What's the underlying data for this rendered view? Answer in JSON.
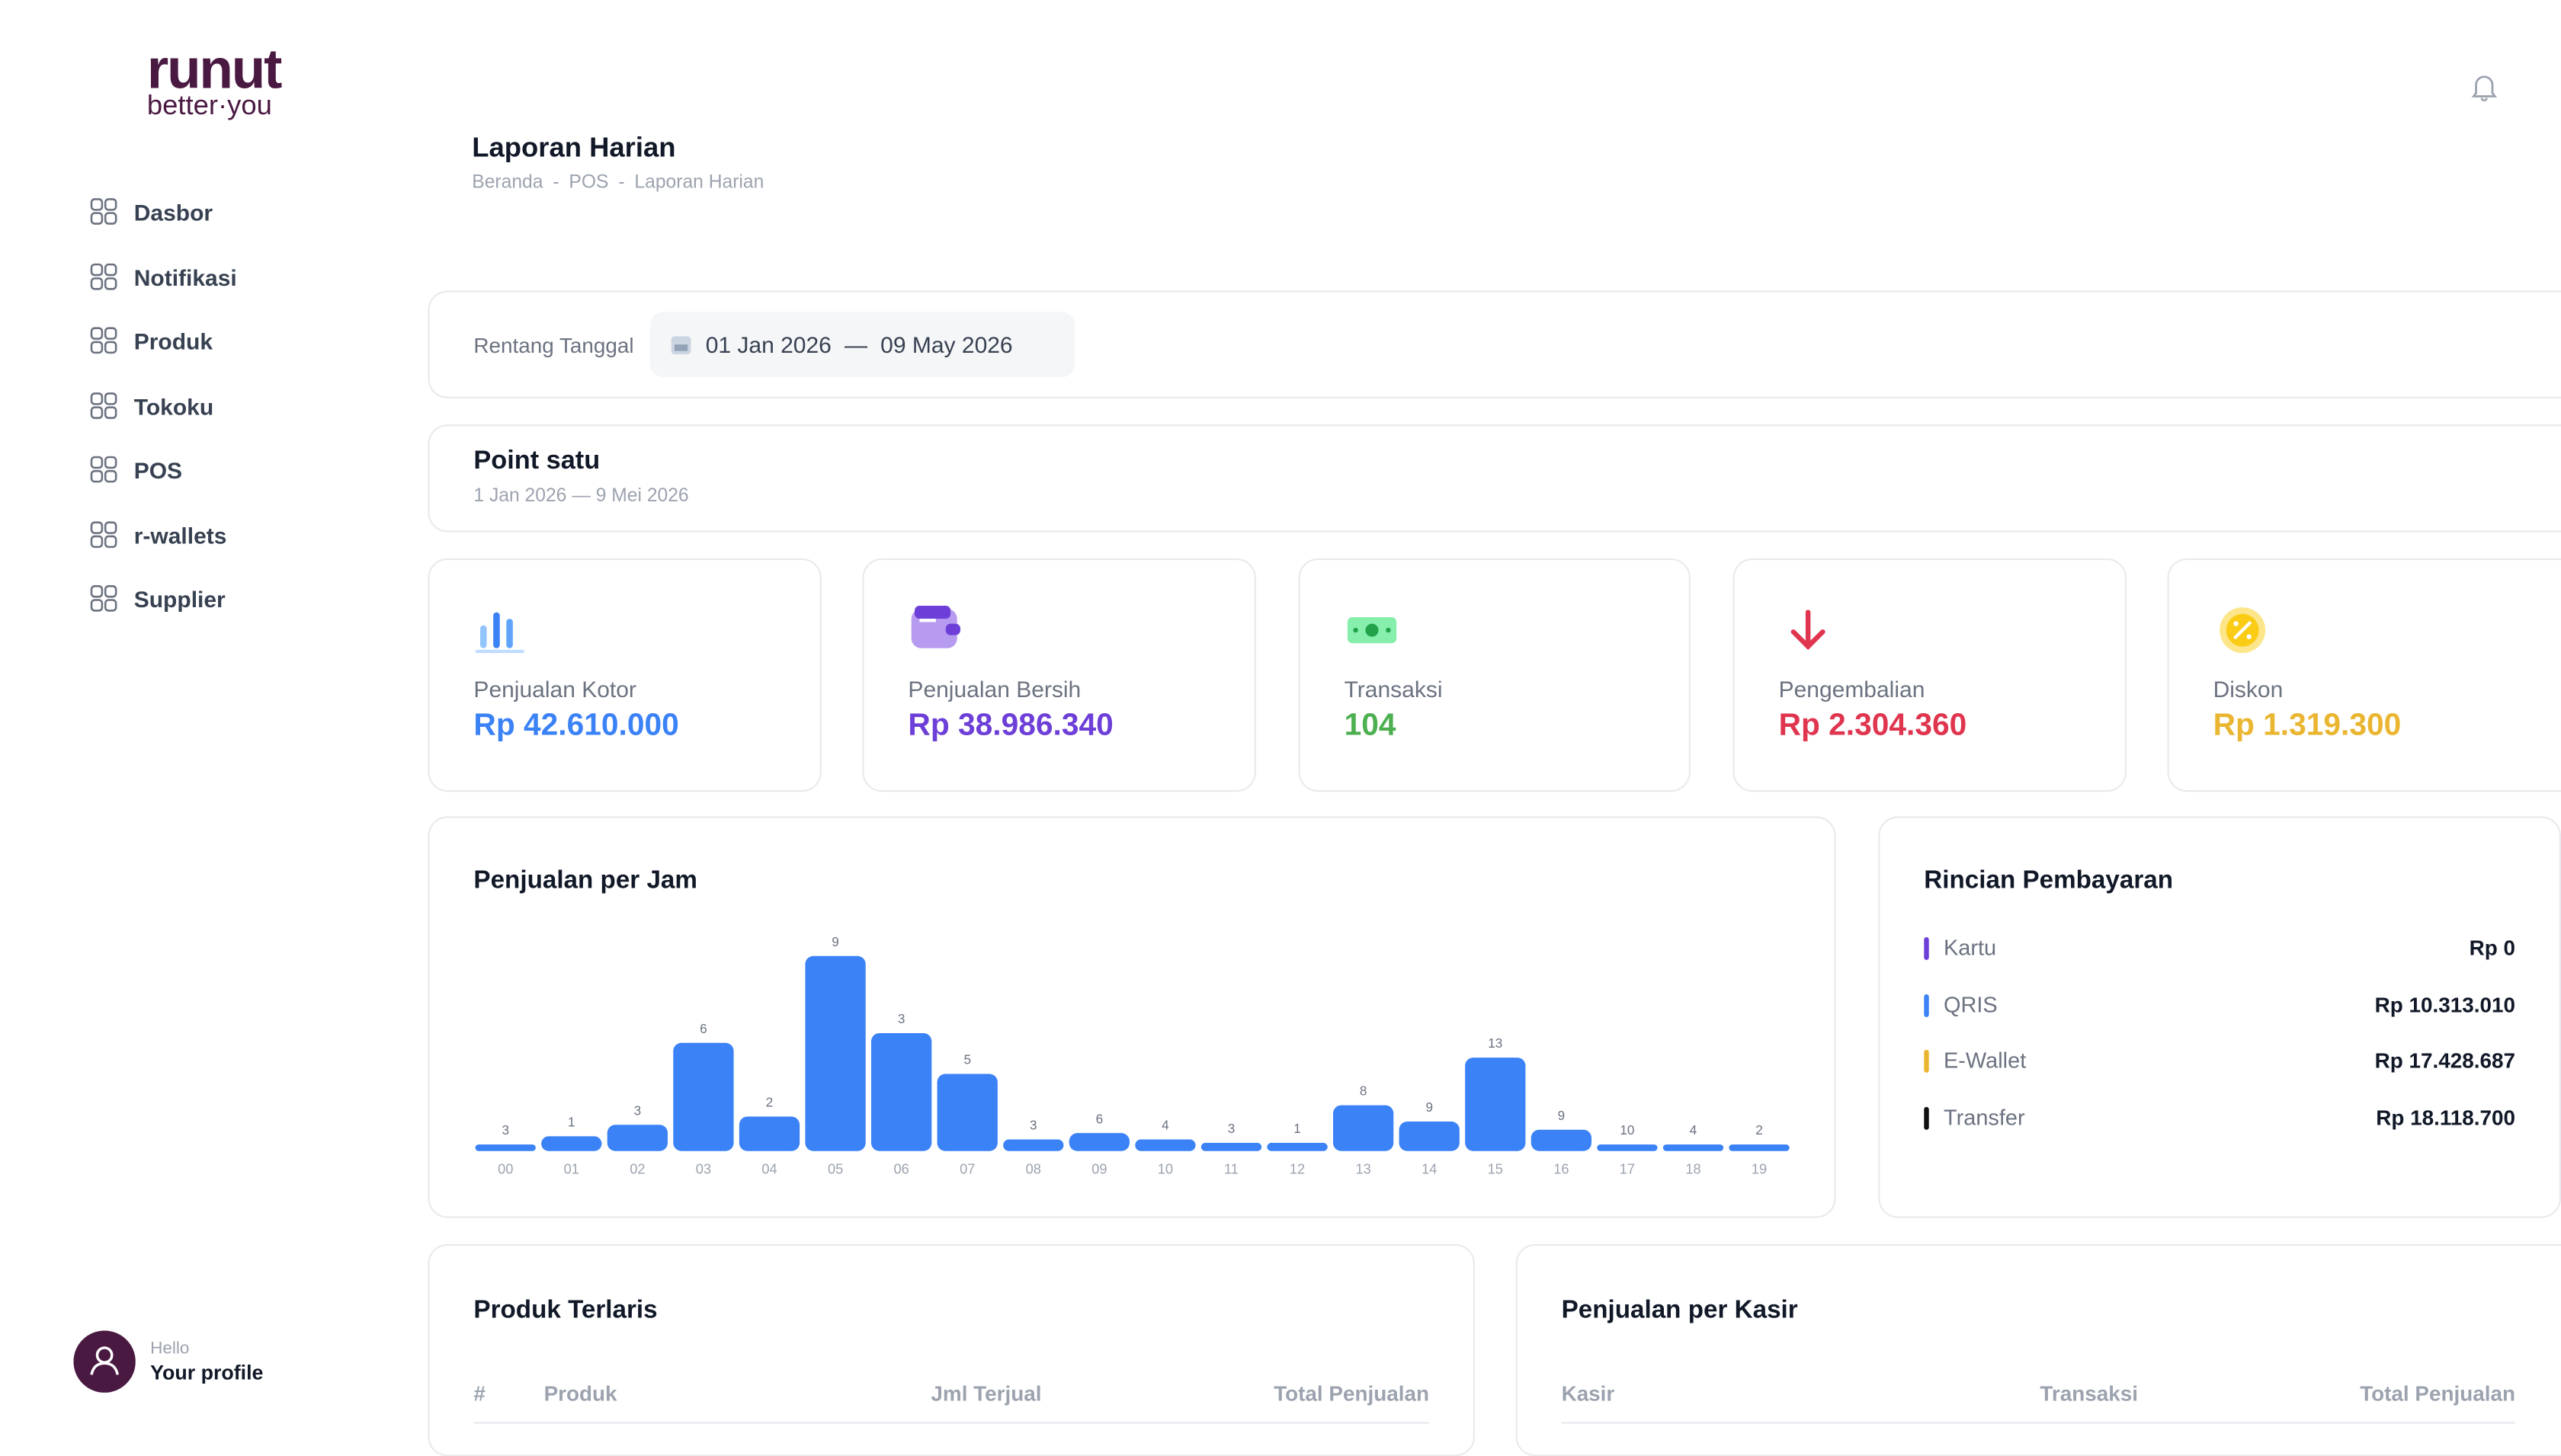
{
  "sidebar": {
    "logo": "runut",
    "tagline": "better·you",
    "nav": [
      "Dasbor",
      "Notifikasi",
      "Produk",
      "Tokoku",
      "POS",
      "r-wallets",
      "Supplier"
    ],
    "profile": {
      "greeting": "Hello",
      "name": "Your profile"
    }
  },
  "header": {
    "title": "Laporan Harian",
    "breadcrumb": [
      "Beranda",
      "POS",
      "Laporan Harian"
    ],
    "breadcrumb_separator": "-"
  },
  "date_range": {
    "label": "Rentang Tanggal",
    "start": "01 Jan 2026",
    "separator": "—",
    "end": "09 May 2026"
  },
  "store": {
    "name": "Point satu",
    "period": "1 Jan 2026 — 9 Mei 2026"
  },
  "stats": [
    {
      "label": "Penjualan Kotor",
      "value": "Rp 42.610.000",
      "color": "#3b82f6"
    },
    {
      "label": "Penjualan Bersih",
      "value": "Rp 38.986.340",
      "color": "#6d3fd8"
    },
    {
      "label": "Transaksi",
      "value": "104",
      "color": "#4caf50"
    },
    {
      "label": "Pengembalian",
      "value": "Rp 2.304.360",
      "color": "#e0354f"
    },
    {
      "label": "Diskon",
      "value": "Rp 1.319.300",
      "color": "#eab530"
    }
  ],
  "chart_data": {
    "type": "bar",
    "title": "Penjualan per Jam",
    "categories": [
      "00",
      "01",
      "02",
      "03",
      "04",
      "05",
      "06",
      "07",
      "08",
      "09",
      "10",
      "11",
      "12",
      "13",
      "14",
      "15",
      "16",
      "17",
      "18",
      "19"
    ],
    "values": [
      330000,
      740000,
      1320000,
      5430000,
      1730000,
      9790000,
      5920000,
      3870000,
      580000,
      900000,
      580000,
      410000,
      410000,
      2300000,
      1480000,
      4690000,
      1070000,
      330000,
      330000,
      330000
    ],
    "counts": [
      3,
      1,
      3,
      6,
      2,
      9,
      3,
      5,
      3,
      6,
      4,
      3,
      1,
      8,
      9,
      13,
      9,
      10,
      4,
      2
    ],
    "color": "#3b82f6",
    "ylim": [
      0,
      10000000
    ]
  },
  "payments": {
    "title": "Rincian Pembayaran",
    "items": [
      {
        "name": "Kartu",
        "amount": "Rp 0",
        "color": "#6d3fd8"
      },
      {
        "name": "QRIS",
        "amount": "Rp 10.313.010",
        "color": "#3b82f6"
      },
      {
        "name": "E-Wallet",
        "amount": "Rp 17.428.687",
        "color": "#eab530"
      },
      {
        "name": "Transfer",
        "amount": "Rp 18.118.700",
        "color": "#111111"
      }
    ]
  },
  "top_products": {
    "title": "Produk Terlaris",
    "columns": [
      "#",
      "Produk",
      "Jml Terjual",
      "Total Penjualan"
    ]
  },
  "cashier_sales": {
    "title": "Penjualan per Kasir",
    "columns": [
      "Kasir",
      "Transaksi",
      "Total Penjualan"
    ]
  }
}
